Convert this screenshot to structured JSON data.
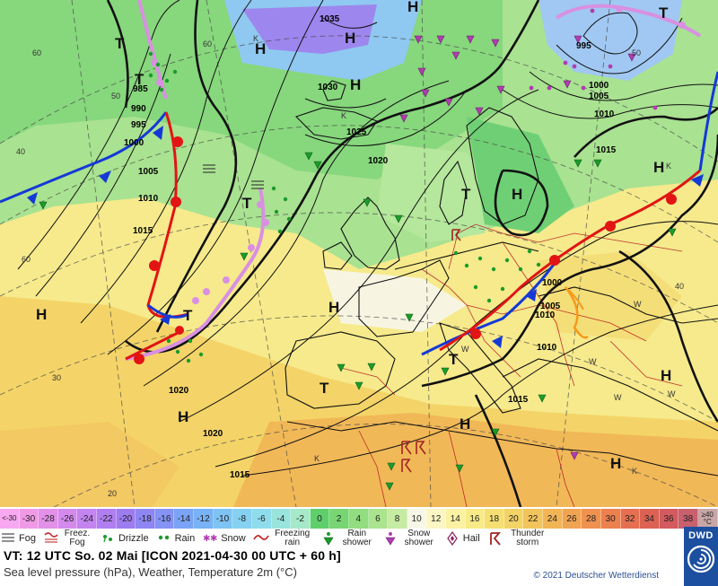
{
  "map": {
    "centers": [
      {
        "letter": "H",
        "kind": "high"
      },
      {
        "letter": "H",
        "kind": "high"
      },
      {
        "letter": "H",
        "kind": "high"
      },
      {
        "letter": "H",
        "kind": "high"
      },
      {
        "letter": "H",
        "kind": "high"
      },
      {
        "letter": "H",
        "kind": "high"
      },
      {
        "letter": "H",
        "kind": "high"
      },
      {
        "letter": "H",
        "kind": "high"
      },
      {
        "letter": "H",
        "kind": "high"
      },
      {
        "letter": "H",
        "kind": "high"
      },
      {
        "letter": "H",
        "kind": "high"
      },
      {
        "letter": "H",
        "kind": "high"
      },
      {
        "letter": "T",
        "kind": "low"
      },
      {
        "letter": "T",
        "kind": "low"
      },
      {
        "letter": "T",
        "kind": "low"
      },
      {
        "letter": "T",
        "kind": "low"
      },
      {
        "letter": "T",
        "kind": "low"
      },
      {
        "letter": "T",
        "kind": "low"
      },
      {
        "letter": "T",
        "kind": "low"
      },
      {
        "letter": "T",
        "kind": "low"
      }
    ],
    "isobar_labels": [
      "1035",
      "1030",
      "1025",
      "1020",
      "1020",
      "1020",
      "1015",
      "1015",
      "1015",
      "1015",
      "1010",
      "1010",
      "1010",
      "1010",
      "1005",
      "1005",
      "1005",
      "1000",
      "1000",
      "1000",
      "995",
      "995",
      "990",
      "985"
    ],
    "latitude_labels": [
      "60",
      "50",
      "40",
      "30",
      "20",
      "40",
      "50",
      "60",
      "60"
    ],
    "wind_labels": [
      "W",
      "W",
      "W",
      "W",
      "W",
      "K",
      "K",
      "K",
      "K",
      "K"
    ]
  },
  "scale": [
    {
      "label": "<-30",
      "color": "#f7a8f0"
    },
    {
      "label": "-30",
      "color": "#f09ae6"
    },
    {
      "label": "-28",
      "color": "#e390e8"
    },
    {
      "label": "-26",
      "color": "#d38aec"
    },
    {
      "label": "-24",
      "color": "#c384ef"
    },
    {
      "label": "-22",
      "color": "#b07ef0"
    },
    {
      "label": "-20",
      "color": "#9d7cf0"
    },
    {
      "label": "-18",
      "color": "#8e86f2"
    },
    {
      "label": "-16",
      "color": "#8493f4"
    },
    {
      "label": "-14",
      "color": "#7aa3f5"
    },
    {
      "label": "-12",
      "color": "#78b3f5"
    },
    {
      "label": "-10",
      "color": "#7ec3f4"
    },
    {
      "label": "-8",
      "color": "#86d1f2"
    },
    {
      "label": "-6",
      "color": "#8fdcec"
    },
    {
      "label": "-4",
      "color": "#99e4dc"
    },
    {
      "label": "-2",
      "color": "#a6e9c9"
    },
    {
      "label": "0",
      "color": "#5fcf6b"
    },
    {
      "label": "2",
      "color": "#77d673"
    },
    {
      "label": "4",
      "color": "#91dd7f"
    },
    {
      "label": "6",
      "color": "#abe48e"
    },
    {
      "label": "8",
      "color": "#c6eba2"
    },
    {
      "label": "10",
      "color": "#f7f7e8"
    },
    {
      "label": "12",
      "color": "#fbf6c4"
    },
    {
      "label": "14",
      "color": "#fbf1a2"
    },
    {
      "label": "16",
      "color": "#f8ea86"
    },
    {
      "label": "18",
      "color": "#f5df73"
    },
    {
      "label": "20",
      "color": "#f3d266"
    },
    {
      "label": "22",
      "color": "#f2c45c"
    },
    {
      "label": "24",
      "color": "#f1b556"
    },
    {
      "label": "26",
      "color": "#f0a452"
    },
    {
      "label": "28",
      "color": "#ef924f"
    },
    {
      "label": "30",
      "color": "#ec804e"
    },
    {
      "label": "32",
      "color": "#e56f50"
    },
    {
      "label": "34",
      "color": "#dc6254"
    },
    {
      "label": "36",
      "color": "#d35a5e"
    },
    {
      "label": "38",
      "color": "#c9606e"
    },
    {
      "label": "≥40 °C",
      "color": "#c8a6a6"
    }
  ],
  "legend": [
    {
      "icon": "fog-icon",
      "label": "Fog"
    },
    {
      "icon": "freezing-fog-icon",
      "label": "Freez. Fog"
    },
    {
      "icon": "drizzle-icon",
      "label": "Drizzle"
    },
    {
      "icon": "rain-icon",
      "label": "Rain"
    },
    {
      "icon": "snow-icon",
      "label": "Snow"
    },
    {
      "icon": "freezing-rain-icon",
      "label": "Freezing rain"
    },
    {
      "icon": "rain-shower-icon",
      "label": "Rain shower"
    },
    {
      "icon": "snow-shower-icon",
      "label": "Snow shower"
    },
    {
      "icon": "hail-icon",
      "label": "Hail"
    },
    {
      "icon": "thunderstorm-icon",
      "label": "Thunder storm"
    }
  ],
  "footer": {
    "valid_time": "VT: 12 UTC So.  02 Mai [ICON 2021-04-30  00 UTC + 60 h]",
    "description": "Sea level pressure (hPa), Weather, Temperature 2m (°C)",
    "copyright": "© 2021 Deutscher Wetterdienst",
    "logo_text": "DWD"
  }
}
